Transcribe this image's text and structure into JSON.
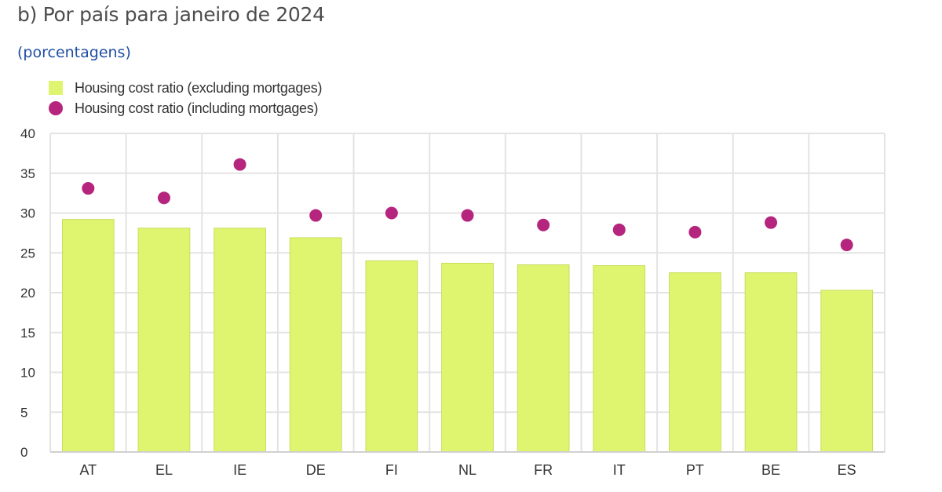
{
  "title": "b) Por país para janeiro de 2024",
  "subtitle": "(porcentagens)",
  "legend": {
    "bar_label": "Housing cost ratio (excluding mortgages)",
    "dot_label": "Housing cost ratio (including mortgages)"
  },
  "colors": {
    "bar": "#dff570",
    "bar_stroke": "#c9dc5a",
    "dot": "#b5257e",
    "grid": "#e3e3e3"
  },
  "chart_data": {
    "type": "bar",
    "categories": [
      "AT",
      "EL",
      "IE",
      "DE",
      "FI",
      "NL",
      "FR",
      "IT",
      "PT",
      "BE",
      "ES"
    ],
    "series": [
      {
        "name": "Housing cost ratio (excluding mortgages)",
        "kind": "bar",
        "values": [
          29.2,
          28.1,
          28.1,
          26.9,
          24.0,
          23.7,
          23.5,
          23.4,
          22.5,
          22.5,
          20.3
        ]
      },
      {
        "name": "Housing cost ratio (including mortgages)",
        "kind": "dot",
        "values": [
          33.1,
          31.9,
          36.1,
          29.7,
          30.0,
          29.7,
          28.5,
          27.9,
          27.6,
          28.8,
          26.0
        ]
      }
    ],
    "yticks": [
      "0",
      "5",
      "10",
      "15",
      "20",
      "25",
      "30",
      "35",
      "40"
    ],
    "ylim": [
      0,
      40
    ],
    "grid": true,
    "legend_position": "top-left"
  }
}
